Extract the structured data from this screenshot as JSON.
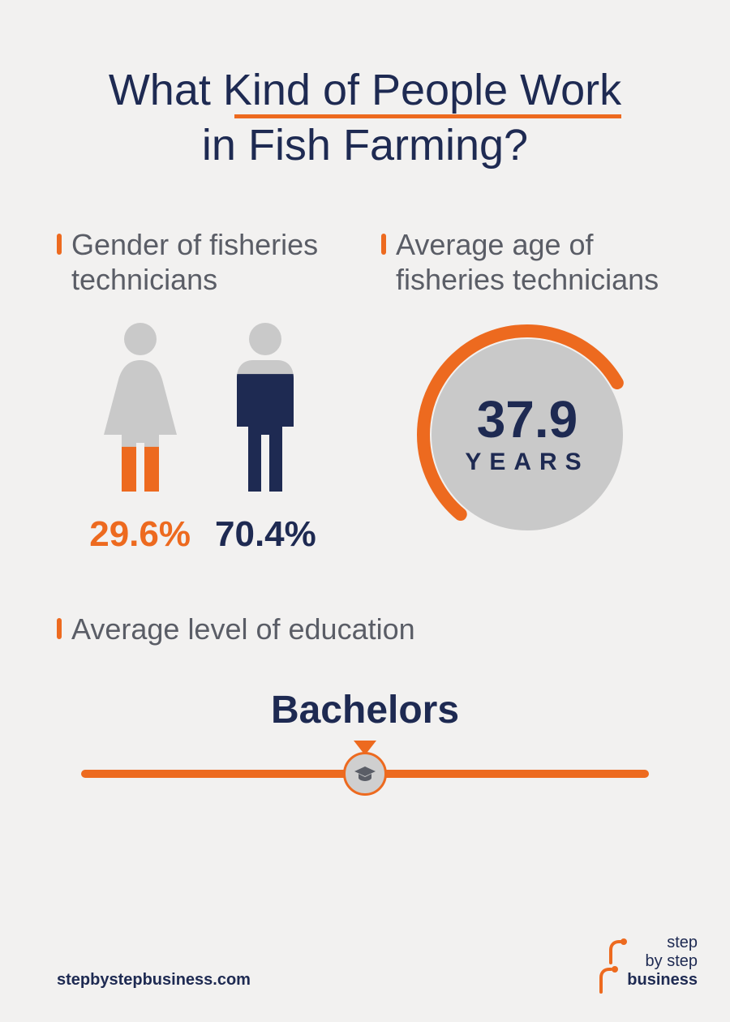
{
  "title": {
    "line1": "What Kind of People Work",
    "line2": "in Fish Farming?"
  },
  "colors": {
    "navy": "#1e2a52",
    "orange": "#ed6a1f",
    "grey": "#c9c9c9",
    "textgrey": "#5a5d66",
    "bg": "#f2f1f0"
  },
  "gender": {
    "label": "Gender of fisheries technicians",
    "female_pct": "29.6%",
    "female_fill_ratio": 0.296,
    "male_pct": "70.4%",
    "male_fill_ratio": 0.704
  },
  "age": {
    "label": "Average age of fisheries technicians",
    "value": "37.9",
    "unit": "YEARS",
    "ring_start_deg": 130,
    "ring_sweep_deg": 200,
    "ring_stroke": 16
  },
  "education": {
    "label": "Average level of education",
    "value": "Bachelors"
  },
  "footer": {
    "url": "stepbystepbusiness.com",
    "logo_l1": "step",
    "logo_l2": "by step",
    "logo_l3": "business"
  }
}
